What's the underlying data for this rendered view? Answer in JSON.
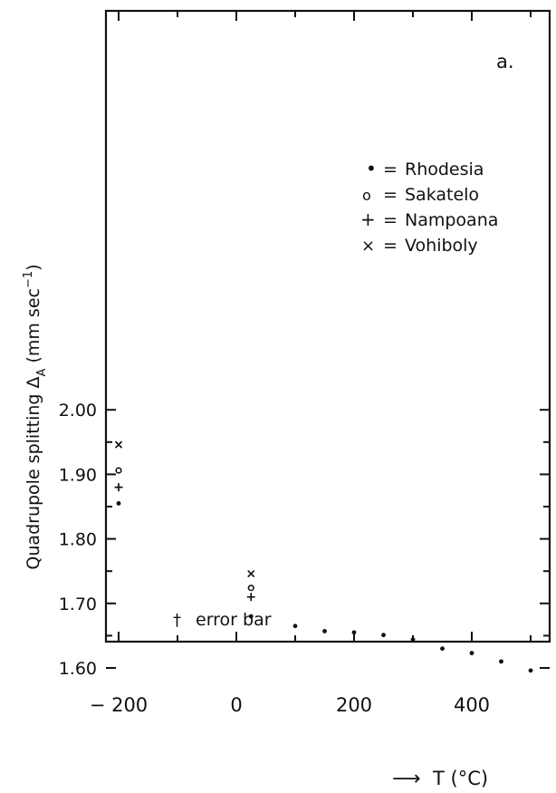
{
  "chart_data": {
    "type": "scatter",
    "panel_label": "a.",
    "xlabel": "T (°C)",
    "ylabel": "Quadrupole splitting Δ",
    "ylabel_sub": "A",
    "ylabel_units": " (mm sec",
    "ylabel_exp": "−1",
    "ylabel_close": ")",
    "xlim": [
      -200,
      550
    ],
    "ylim": [
      1.56,
      2.06
    ],
    "x_ticks": [
      -200,
      0,
      200,
      400
    ],
    "x_tick_labels": [
      "− 200",
      "0",
      "200",
      "400"
    ],
    "y_ticks": [
      1.6,
      1.7,
      1.8,
      1.9,
      2.0
    ],
    "y_tick_labels": [
      "1.60",
      "1.70",
      "1.80",
      "1.90",
      "2.00"
    ],
    "grid": false,
    "legend_placement": "upper-right",
    "series": [
      {
        "name": "Rhodesia",
        "marker": "dot",
        "x": [
          -200,
          25,
          100,
          150,
          200,
          250,
          300,
          350,
          400,
          450,
          500
        ],
        "y": [
          1.855,
          1.68,
          1.665,
          1.657,
          1.655,
          1.651,
          1.644,
          1.63,
          1.623,
          1.61,
          1.596
        ]
      },
      {
        "name": "Sakatelo",
        "marker": "circle",
        "x": [
          -200,
          25
        ],
        "y": [
          1.906,
          1.724
        ]
      },
      {
        "name": "Nampoana",
        "marker": "plus",
        "x": [
          -200,
          25
        ],
        "y": [
          1.88,
          1.71
        ]
      },
      {
        "name": "Vohiboly",
        "marker": "cross",
        "x": [
          -200,
          25
        ],
        "y": [
          1.946,
          1.746
        ]
      }
    ],
    "legend_entries": [
      {
        "symbol": "•",
        "sep": "=",
        "label": "Rhodesia"
      },
      {
        "symbol": "o",
        "sep": "=",
        "label": "Sakatelo"
      },
      {
        "symbol": "+",
        "sep": "=",
        "label": "Nampoana"
      },
      {
        "symbol": "×",
        "sep": "=",
        "label": "Vohiboly"
      }
    ],
    "annotations": [
      {
        "symbol": "†",
        "text": "error bar",
        "x": -100,
        "y": 1.619
      }
    ],
    "arrow": "⟶"
  }
}
